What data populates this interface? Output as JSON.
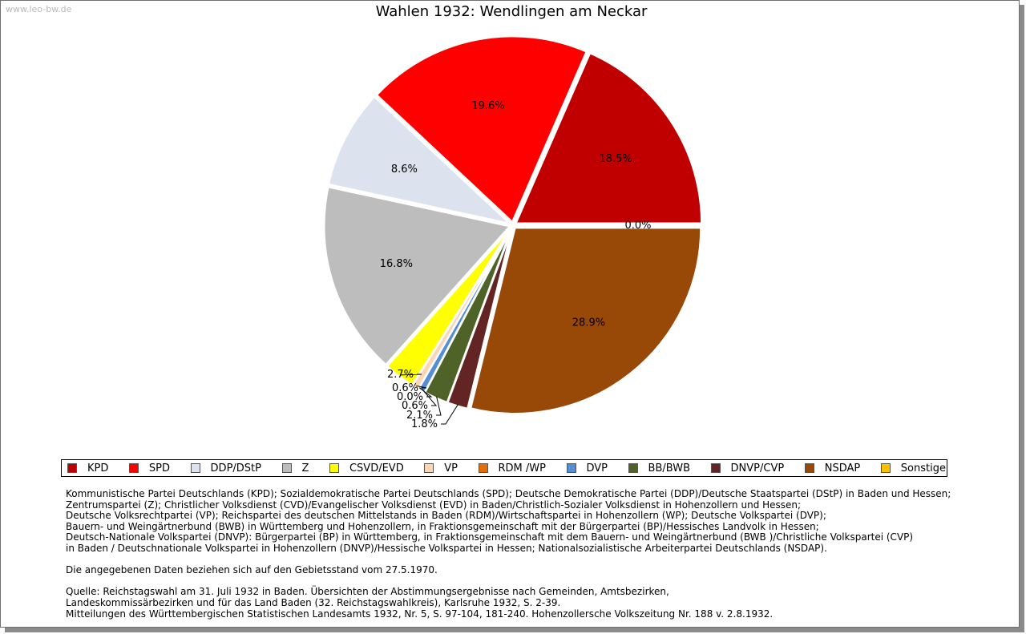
{
  "watermark": "www.leo-bw.de",
  "chart_data": {
    "type": "pie",
    "title": "Wahlen 1932: Wendlingen am Neckar",
    "legend_position": "bottom",
    "slices": [
      {
        "name": "KPD",
        "value": 18.5,
        "label": "18.5%",
        "color": "#c00000"
      },
      {
        "name": "SPD",
        "value": 19.6,
        "label": "19.6%",
        "color": "#ff0000"
      },
      {
        "name": "DDP/DStP",
        "value": 8.6,
        "label": "8.6%",
        "color": "#dce3ef"
      },
      {
        "name": "Z",
        "value": 16.8,
        "label": "16.8%",
        "color": "#bdbdbd"
      },
      {
        "name": "CSVD/EVD",
        "value": 2.7,
        "label": "2.7%",
        "color": "#ffff00"
      },
      {
        "name": "VP",
        "value": 0.6,
        "label": "0.6%",
        "color": "#fcd5b5"
      },
      {
        "name": "RDM /WP",
        "value": 0.0,
        "label": "0.0%",
        "color": "#e46c0a"
      },
      {
        "name": "DVP",
        "value": 0.6,
        "label": "0.6%",
        "color": "#558ed5"
      },
      {
        "name": "BB/BWB",
        "value": 2.1,
        "label": "2.1%",
        "color": "#4f6228"
      },
      {
        "name": "DNVP/CVP",
        "value": 1.8,
        "label": "1.8%",
        "color": "#632523"
      },
      {
        "name": "NSDAP",
        "value": 28.9,
        "label": "28.9%",
        "color": "#984807"
      },
      {
        "name": "Sonstige",
        "value": 0.0,
        "label": "0.0%",
        "color": "#ffc000"
      }
    ]
  },
  "notes": [
    "Kommunistische Partei Deutschlands (KPD); Sozialdemokratische Partei Deutschlands (SPD); Deutsche Demokratische Partei (DDP)/Deutsche Staatspartei (DStP) in Baden und Hessen;",
    "Zentrumspartei (Z); Christlicher Volksdienst (CVD)/Evangelischer Volksdienst (EVD) in Baden/Christlich-Sozialer Volksdienst in Hohenzollern und Hessen;",
    "Deutsche Volksrechtpartei (VP); Reichspartei des deutschen Mittelstands in Baden (RDM)/Wirtschaftspartei in Hohenzollern (WP); Deutsche Volkspartei (DVP);",
    "Bauern- und Weingärtnerbund (BWB) in Württemberg und Hohenzollern, in Fraktionsgemeinschaft mit der Bürgerpartei (BP)/Hessisches Landvolk in Hessen;",
    "Deutsch-Nationale Volkspartei (DNVP): Bürgerpartei (BP) in Württemberg, in Fraktionsgemeinschaft mit dem Bauern- und Weingärtnerbund (BWB )/Christliche Volkspartei (CVP)",
    "in Baden / Deutschnationale Volkspartei in Hohenzollern (DNVP)/Hessische Volkspartei in Hessen; Nationalsozialistische Arbeiterpartei Deutschlands (NSDAP).",
    "",
    "Die angegebenen Daten beziehen sich auf den Gebietsstand vom 27.5.1970.",
    "",
    "Quelle: Reichstagswahl am 31. Juli 1932 in Baden. Übersichten der Abstimmungsergebnisse nach Gemeinden, Amtsbezirken,",
    "Landeskommissärbezirken und für das Land Baden (32. Reichstagswahlkreis), Karlsruhe 1932, S. 2-39.",
    "Mitteilungen des Württembergischen Statistischen Landesamts 1932, Nr. 5, S. 97-104, 181-240. Hohenzollersche Volkszeitung Nr. 188 v. 2.8.1932."
  ]
}
